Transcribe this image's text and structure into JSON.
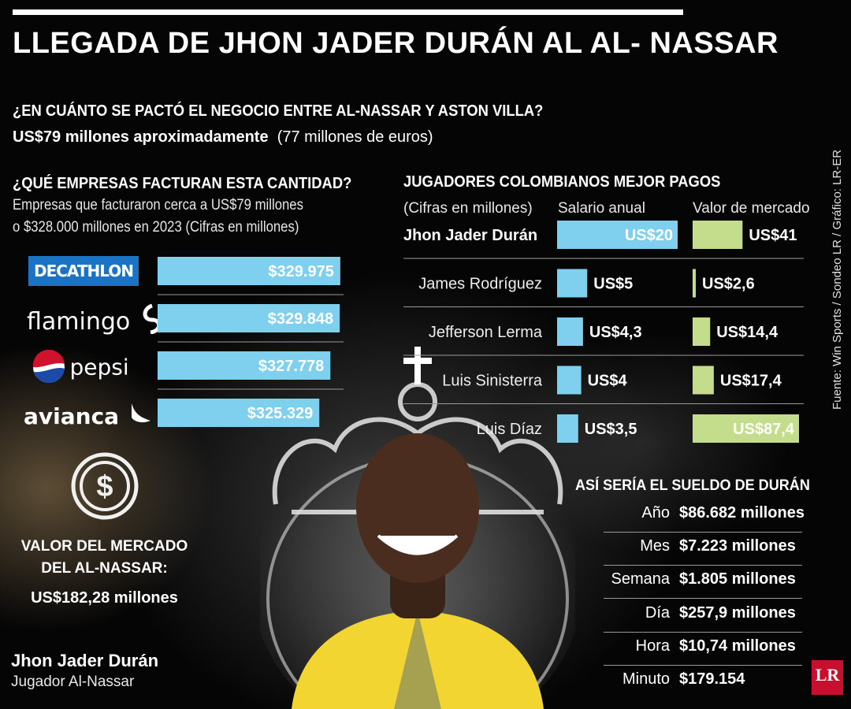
{
  "title": "LLEGADA DE JHON JADER DURÁN AL AL- NASSAR",
  "deal": {
    "question": "¿EN CUÁNTO SE PACTÓ EL NEGOCIO ENTRE AL-NASSAR Y ASTON VILLA?",
    "amount": "US$79 millones aproximadamente",
    "amount_eur": "(77 millones de euros)"
  },
  "companies": {
    "question": "¿QUÉ EMPRESAS FACTURAN ESTA CANTIDAD?",
    "subtitle_1": "Empresas que facturaron cerca a  US$79 millones",
    "subtitle_2": "o $328.000 millones en 2023    (Cifras en millones)",
    "logos": [
      "DECATHLON",
      "flamingo",
      "pepsi",
      "avianca"
    ]
  },
  "market_value": {
    "title_1": "VALOR DEL MERCADO",
    "title_2": "DEL AL-NASSAR:",
    "value": "US$182,28 millones"
  },
  "player": {
    "name": "Jhon Jader Durán",
    "role": "Jugador Al-Nassar"
  },
  "players_section": {
    "title": "JUGADORES COLOMBIANOS MEJOR PAGOS",
    "units": "(Cifras en millones)",
    "col_salary": "Salario anual",
    "col_market": "Valor de mercado"
  },
  "salary_section": {
    "title": "ASÍ SERÍA EL SUELDO DE DURÁN",
    "rows": [
      {
        "label": "Año",
        "value": "$86.682 millones"
      },
      {
        "label": "Mes",
        "value": "$7.223 millones"
      },
      {
        "label": "Semana",
        "value": "$1.805 millones"
      },
      {
        "label": "Día",
        "value": "$257,9 millones"
      },
      {
        "label": "Hora",
        "value": "$10,74 millones"
      },
      {
        "label": "Minuto",
        "value": "$179.154"
      }
    ]
  },
  "source": "Fuente: Win Sports / Sondeo LR / Gráfico: LR-ER",
  "brand": "LR",
  "colors": {
    "salary_bar": "#7fd0ee",
    "market_bar": "#c4dd8c",
    "company_bar": "#7fd0ee",
    "brand": "#c8102e"
  },
  "chart_data": [
    {
      "type": "bar",
      "orientation": "horizontal",
      "categories": [
        "DECATHLON",
        "flamingo",
        "pepsi",
        "avianca"
      ],
      "values": [
        329975,
        329848,
        327778,
        325329
      ],
      "labels": [
        "$329.975",
        "$329.848",
        "$327.778",
        "$325.329"
      ],
      "ylim": [
        0,
        330000
      ]
    },
    {
      "type": "bar",
      "orientation": "horizontal",
      "categories": [
        "Jhon Jader Durán",
        "James Rodríguez",
        "Jefferson Lerma",
        "Luis Sinisterra",
        "Luis Díaz"
      ],
      "series": [
        {
          "name": "Salario anual",
          "values": [
            20,
            5,
            4.3,
            4,
            3.5
          ],
          "labels": [
            "US$20",
            "US$5",
            "US$4,3",
            "US$4",
            "US$3,5"
          ]
        },
        {
          "name": "Valor de mercado",
          "values": [
            41,
            2.6,
            14.4,
            17.4,
            87.4
          ],
          "labels": [
            "US$41",
            "US$2,6",
            "US$14,4",
            "US$17,4",
            "US$87,4"
          ]
        }
      ]
    }
  ]
}
